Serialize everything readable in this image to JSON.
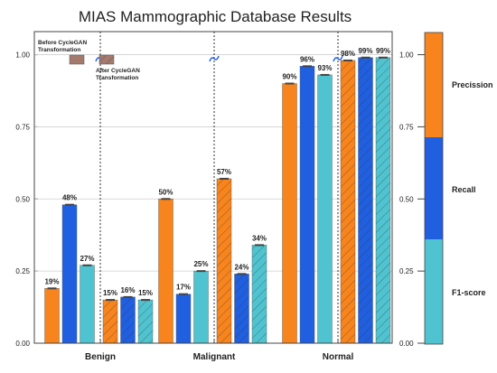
{
  "chart_data": {
    "type": "bar",
    "title": "MIAS Mammographic Database Results",
    "categories": [
      "Benign",
      "Malignant",
      "Normal"
    ],
    "groups": [
      "Before CycleGAN Transformation",
      "After CycleGAN Transformation"
    ],
    "y_ticks": [
      "0.00",
      "0.25",
      "0.50",
      "0.75",
      "1.00"
    ],
    "ylim": [
      0,
      1.08
    ],
    "series": [
      {
        "name": "Precission",
        "color": "#F7841C",
        "before": [
          0.19,
          0.5,
          0.9
        ],
        "after": [
          0.15,
          0.57,
          0.98
        ],
        "before_labels": [
          "19%",
          "50%",
          "90%"
        ],
        "after_labels": [
          "15%",
          "57%",
          "98%"
        ]
      },
      {
        "name": "Recall",
        "color": "#1F5FE0",
        "before": [
          0.48,
          0.17,
          0.96
        ],
        "after": [
          0.16,
          0.24,
          0.99
        ],
        "before_labels": [
          "48%",
          "17%",
          "96%"
        ],
        "after_labels": [
          "16%",
          "24%",
          "99%"
        ]
      },
      {
        "name": "F1-score",
        "color": "#4FC3CF",
        "before": [
          0.27,
          0.25,
          0.93
        ],
        "after": [
          0.15,
          0.34,
          0.99
        ],
        "before_labels": [
          "27%",
          "25%",
          "93%"
        ],
        "after_labels": [
          "15%",
          "34%",
          "99%"
        ]
      }
    ],
    "legend": {
      "placement": "right",
      "type": "color-bar",
      "tick_labels": [
        "0.00",
        "0.25",
        "0.50",
        "0.75",
        "1.00"
      ],
      "entries": [
        "Precission",
        "Recall",
        "F1-score"
      ]
    },
    "annotations": {
      "before_label": "Before CycleGAN Transformation",
      "after_label": "After CycleGAN Transformation",
      "before_lines": [
        "Before CycleGAN",
        "Transformation"
      ],
      "after_lines": [
        "After CycleGAN",
        "Transformation"
      ]
    },
    "grid": true
  }
}
